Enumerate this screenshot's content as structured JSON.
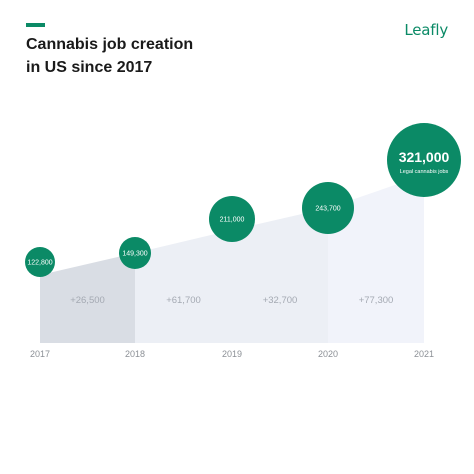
{
  "brand": {
    "logo_text": "Leafly",
    "accent_color": "#0b8a66",
    "logo_color": "#0b8a66"
  },
  "chart_data": {
    "type": "area",
    "title": [
      "Cannabis job creation",
      "in US since 2017"
    ],
    "xlabel": "",
    "ylabel": "",
    "grid": false,
    "legend": "none",
    "categories": [
      "2017",
      "2018",
      "2019",
      "2020",
      "2021"
    ],
    "values": [
      122800,
      149300,
      211000,
      243700,
      321000
    ],
    "value_labels": [
      "122,800",
      "149,300",
      "211,000",
      "243,700",
      "321,000"
    ],
    "highlight_sublabel": "Legal cannabis jobs",
    "increase_labels": [
      "+26,500",
      "+61,700",
      "+32,700",
      "+77,300"
    ],
    "ylim": [
      0,
      350000
    ],
    "colors": {
      "marker": "#0b8a66",
      "marker_text": "#ffffff",
      "area_first_segment": "#d9dde4",
      "area_segments": "#eceff5",
      "area_last_segment": "#f1f3fa",
      "increase_text": "#a4a9b2",
      "year_text": "#8c9096"
    }
  }
}
